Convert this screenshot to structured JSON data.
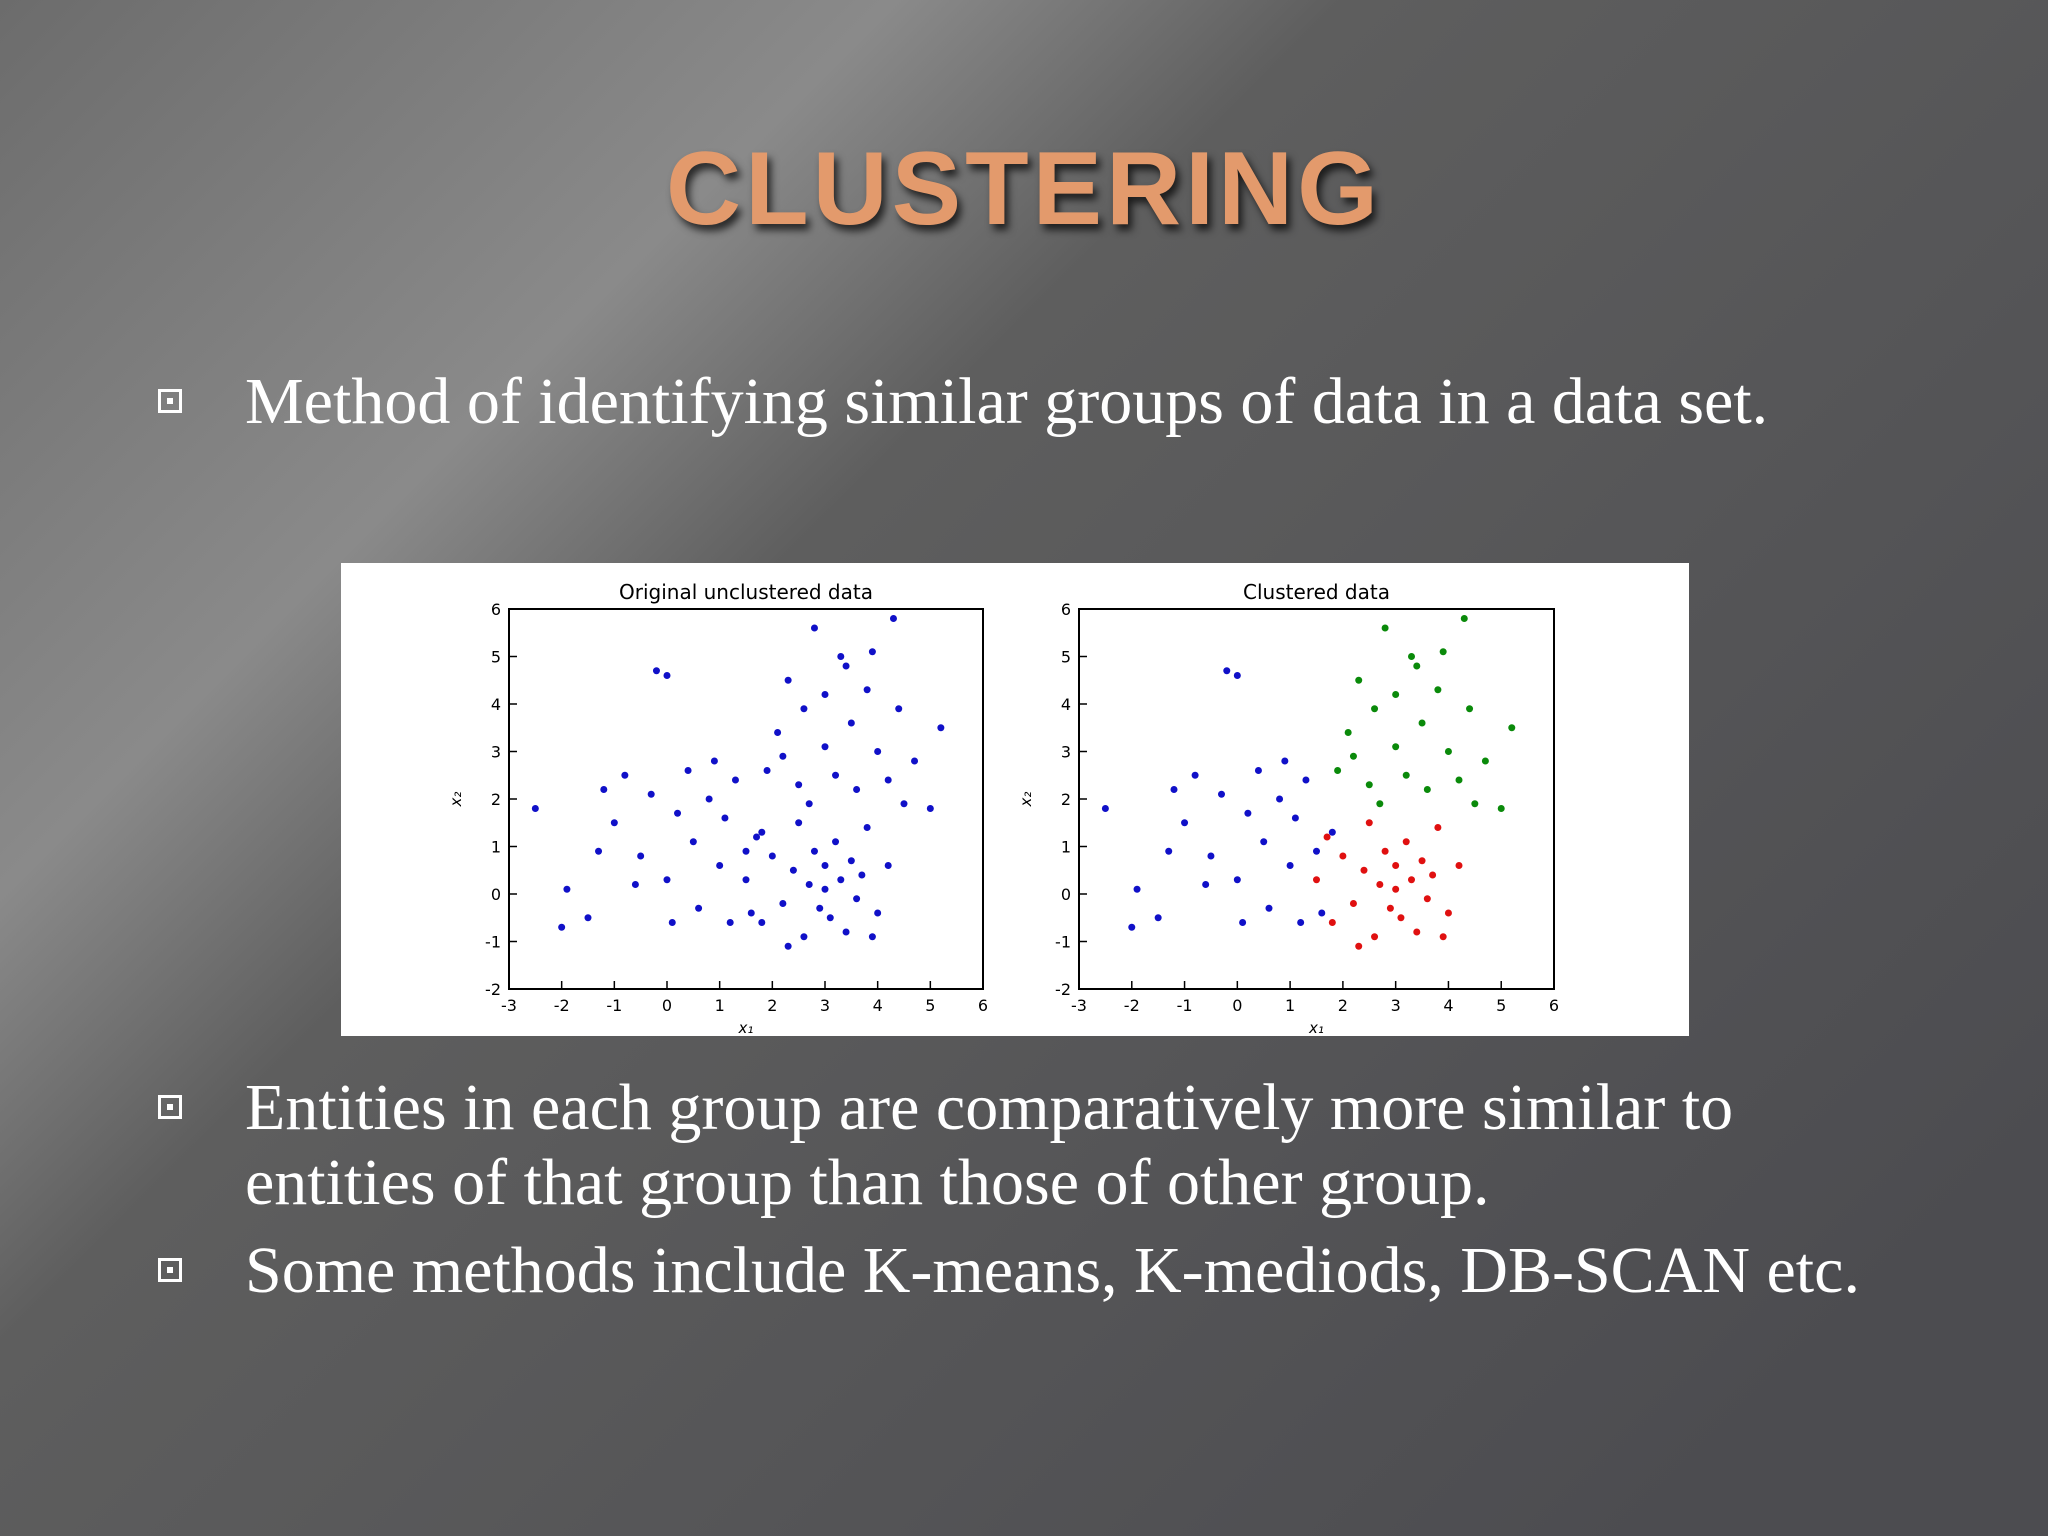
{
  "slide": {
    "title": "CLUSTERING",
    "bullets": [
      "Method of identifying similar groups of data in a data set.",
      "Entities in each group are comparatively more similar to entities of that group than those of other group.",
      "Some methods include K-means, K-mediods, DB-SCAN etc."
    ]
  },
  "chart_data": [
    {
      "type": "scatter",
      "title": "Original unclustered data",
      "x_label": "x₁",
      "y_label": "x₂",
      "xlim": [
        -3,
        6
      ],
      "ylim": [
        -2,
        6
      ],
      "xticks": [
        -3,
        -2,
        -1,
        0,
        1,
        2,
        3,
        4,
        5,
        6
      ],
      "yticks": [
        -2,
        -1,
        0,
        1,
        2,
        3,
        4,
        5,
        6
      ],
      "series": [
        {
          "color": "#1010c8",
          "x": [
            -2.5,
            -2,
            -1.9,
            -1.5,
            -1.3,
            -1,
            -0.8,
            -0.5,
            -0.3,
            -0.2,
            0,
            0,
            0.2,
            0.4,
            0.5,
            0.6,
            0.8,
            1,
            1.1,
            1.3,
            1.5,
            1.6,
            1.8,
            0.1,
            -0.6,
            1.2,
            0.9,
            -1.2,
            1.9,
            2.1,
            2.3,
            2.5,
            2.6,
            2.8,
            3,
            3,
            3.2,
            3.3,
            3.5,
            3.6,
            3.8,
            4,
            4.2,
            4.4,
            4.7,
            5.2,
            2.7,
            3.9,
            2.2,
            3.4,
            4.5,
            5,
            4.3,
            1.5,
            1.8,
            2,
            2.2,
            2.4,
            2.5,
            2.6,
            2.7,
            2.8,
            2.9,
            3,
            3,
            3.1,
            3.2,
            3.3,
            3.4,
            3.5,
            3.6,
            3.7,
            3.8,
            4,
            4.2,
            2.3,
            3.9,
            1.7
          ],
          "values": [
            1.8,
            -0.7,
            0.1,
            -0.5,
            0.9,
            1.5,
            2.5,
            0.8,
            2.1,
            4.7,
            4.6,
            0.3,
            1.7,
            2.6,
            1.1,
            -0.3,
            2.0,
            0.6,
            1.6,
            2.4,
            0.9,
            -0.4,
            1.3,
            -0.6,
            0.2,
            -0.6,
            2.8,
            2.2,
            2.6,
            3.4,
            4.5,
            2.3,
            3.9,
            5.6,
            3.1,
            4.2,
            2.5,
            5.0,
            3.6,
            2.2,
            4.3,
            3.0,
            2.4,
            3.9,
            2.8,
            3.5,
            1.9,
            5.1,
            2.9,
            4.8,
            1.9,
            1.8,
            5.8,
            0.3,
            -0.6,
            0.8,
            -0.2,
            0.5,
            1.5,
            -0.9,
            0.2,
            0.9,
            -0.3,
            0.1,
            0.6,
            -0.5,
            1.1,
            0.3,
            -0.8,
            0.7,
            -0.1,
            0.4,
            1.4,
            -0.4,
            0.6,
            -1.1,
            -0.9,
            1.2
          ]
        }
      ]
    },
    {
      "type": "scatter",
      "title": "Clustered data",
      "x_label": "x₁",
      "y_label": "x₂",
      "xlim": [
        -3,
        6
      ],
      "ylim": [
        -2,
        6
      ],
      "xticks": [
        -3,
        -2,
        -1,
        0,
        1,
        2,
        3,
        4,
        5,
        6
      ],
      "yticks": [
        -2,
        -1,
        0,
        1,
        2,
        3,
        4,
        5,
        6
      ],
      "series": [
        {
          "color": "#1010c8",
          "x": [
            -2.5,
            -2,
            -1.9,
            -1.5,
            -1.3,
            -1,
            -0.8,
            -0.5,
            -0.3,
            -0.2,
            0,
            0,
            0.2,
            0.4,
            0.5,
            0.6,
            0.8,
            1,
            1.1,
            1.3,
            1.5,
            1.6,
            1.8,
            0.1,
            -0.6,
            1.2,
            0.9,
            -1.2
          ],
          "values": [
            1.8,
            -0.7,
            0.1,
            -0.5,
            0.9,
            1.5,
            2.5,
            0.8,
            2.1,
            4.7,
            4.6,
            0.3,
            1.7,
            2.6,
            1.1,
            -0.3,
            2.0,
            0.6,
            1.6,
            2.4,
            0.9,
            -0.4,
            1.3,
            -0.6,
            0.2,
            -0.6,
            2.8,
            2.2
          ]
        },
        {
          "color": "#0a8a0a",
          "x": [
            1.9,
            2.1,
            2.3,
            2.5,
            2.6,
            2.8,
            3,
            3,
            3.2,
            3.3,
            3.5,
            3.6,
            3.8,
            4,
            4.2,
            4.4,
            4.7,
            5.2,
            2.7,
            3.9,
            2.2,
            3.4,
            4.5,
            5,
            4.3
          ],
          "values": [
            2.6,
            3.4,
            4.5,
            2.3,
            3.9,
            5.6,
            3.1,
            4.2,
            2.5,
            5.0,
            3.6,
            2.2,
            4.3,
            3.0,
            2.4,
            3.9,
            2.8,
            3.5,
            1.9,
            5.1,
            2.9,
            4.8,
            1.9,
            1.8,
            5.8
          ]
        },
        {
          "color": "#e01010",
          "x": [
            1.5,
            1.8,
            2,
            2.2,
            2.4,
            2.5,
            2.6,
            2.7,
            2.8,
            2.9,
            3,
            3,
            3.1,
            3.2,
            3.3,
            3.4,
            3.5,
            3.6,
            3.7,
            3.8,
            4,
            4.2,
            2.3,
            3.9,
            1.7
          ],
          "values": [
            0.3,
            -0.6,
            0.8,
            -0.2,
            0.5,
            1.5,
            -0.9,
            0.2,
            0.9,
            -0.3,
            0.1,
            0.6,
            -0.5,
            1.1,
            0.3,
            -0.8,
            0.7,
            -0.1,
            0.4,
            1.4,
            -0.4,
            0.6,
            -1.1,
            -0.9,
            1.2
          ]
        }
      ]
    }
  ]
}
